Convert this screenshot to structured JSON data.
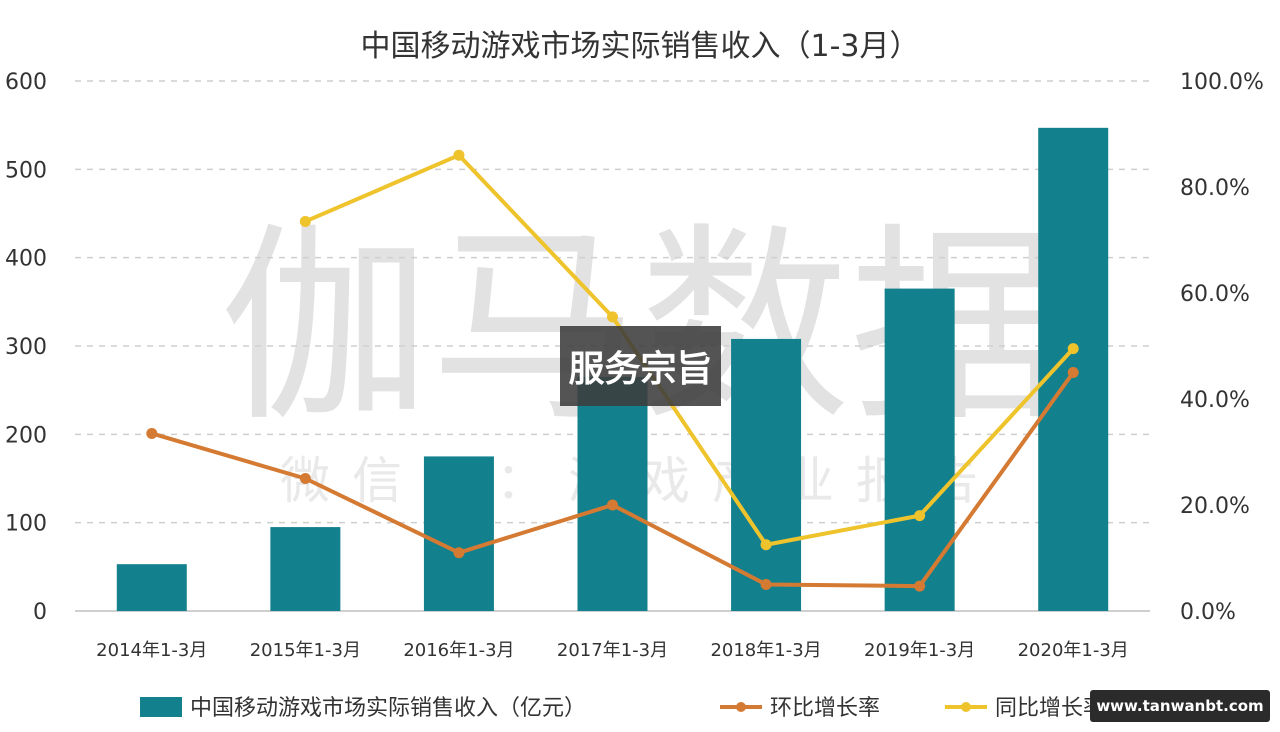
{
  "chart_data": {
    "type": "bar",
    "title": "中国移动游戏市场实际销售收入（1-3月）",
    "categories": [
      "2014年1-3月",
      "2015年1-3月",
      "2016年1-3月",
      "2017年1-3月",
      "2018年1-3月",
      "2019年1-3月",
      "2020年1-3月"
    ],
    "series": [
      {
        "name": "中国移动游戏市场实际销售收入（亿元）",
        "type": "bar",
        "axis": "left",
        "color": "#13808e",
        "values": [
          53,
          95,
          175,
          265,
          308,
          365,
          547
        ]
      },
      {
        "name": "环比增长率",
        "type": "line",
        "axis": "right",
        "color": "#d47a32",
        "values": [
          0.335,
          0.25,
          0.11,
          0.2,
          0.05,
          0.047,
          0.45
        ]
      },
      {
        "name": "同比增长率",
        "type": "line",
        "axis": "right",
        "color": "#eec32c",
        "values": [
          null,
          0.735,
          0.86,
          0.555,
          0.125,
          0.18,
          0.495
        ]
      }
    ],
    "y_left": {
      "min": 0,
      "max": 600,
      "ticks": [
        "0",
        "100",
        "200",
        "300",
        "400",
        "500",
        "600"
      ]
    },
    "y_right": {
      "min": 0,
      "max": 1,
      "ticks": [
        "0.0%",
        "20.0%",
        "40.0%",
        "60.0%",
        "80.0%",
        "100.0%"
      ]
    },
    "grid": true,
    "legend_position": "bottom"
  },
  "watermark": {
    "main": "伽马数据",
    "sub": "微信号：游戏产业报告"
  },
  "overlay_label": "服务宗旨",
  "site_badge": "www.tanwanbt.com"
}
